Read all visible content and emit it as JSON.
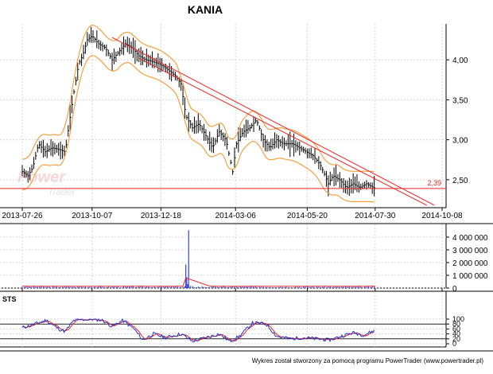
{
  "chart_data": [
    {
      "type": "line",
      "title": "KANIA",
      "price_axis": {
        "ylim": [
          2.15,
          4.45
        ],
        "ticks": [
          "4,00",
          "3,50",
          "3,00",
          "2,50"
        ],
        "tick_values": [
          4.0,
          3.5,
          3.0,
          2.5
        ]
      },
      "date_axis": {
        "ticks": [
          "2013-07-26",
          "2013-10-07",
          "2013-12-18",
          "2014-03-06",
          "2014-05-20",
          "2014-07-30",
          "2014-10-08"
        ]
      },
      "close_series": [
        [
          "2013-07-26",
          2.6
        ],
        [
          "2013-08-01",
          2.55
        ],
        [
          "2013-08-06",
          2.65
        ],
        [
          "2013-08-12",
          2.95
        ],
        [
          "2013-08-19",
          2.85
        ],
        [
          "2013-08-26",
          2.9
        ],
        [
          "2013-09-02",
          2.88
        ],
        [
          "2013-09-09",
          2.85
        ],
        [
          "2013-09-13",
          3.2
        ],
        [
          "2013-09-18",
          3.6
        ],
        [
          "2013-09-23",
          3.95
        ],
        [
          "2013-09-27",
          4.05
        ],
        [
          "2013-10-02",
          4.25
        ],
        [
          "2013-10-07",
          4.3
        ],
        [
          "2013-10-14",
          4.2
        ],
        [
          "2013-10-21",
          4.15
        ],
        [
          "2013-10-28",
          4.0
        ],
        [
          "2013-11-04",
          4.1
        ],
        [
          "2013-11-11",
          4.2
        ],
        [
          "2013-11-18",
          4.15
        ],
        [
          "2013-11-25",
          4.05
        ],
        [
          "2013-12-02",
          4.0
        ],
        [
          "2013-12-09",
          3.98
        ],
        [
          "2013-12-16",
          3.95
        ],
        [
          "2013-12-23",
          3.9
        ],
        [
          "2014-01-02",
          3.8
        ],
        [
          "2014-01-08",
          3.7
        ],
        [
          "2014-01-13",
          3.3
        ],
        [
          "2014-01-20",
          3.15
        ],
        [
          "2014-01-27",
          3.2
        ],
        [
          "2014-02-03",
          3.05
        ],
        [
          "2014-02-10",
          2.9
        ],
        [
          "2014-02-17",
          3.1
        ],
        [
          "2014-02-24",
          3.0
        ],
        [
          "2014-03-03",
          2.6
        ],
        [
          "2014-03-07",
          2.95
        ],
        [
          "2014-03-14",
          3.1
        ],
        [
          "2014-03-21",
          3.15
        ],
        [
          "2014-03-28",
          3.25
        ],
        [
          "2014-04-04",
          3.0
        ],
        [
          "2014-04-11",
          2.9
        ],
        [
          "2014-04-18",
          3.0
        ],
        [
          "2014-04-25",
          2.95
        ],
        [
          "2014-05-05",
          2.95
        ],
        [
          "2014-05-12",
          2.9
        ],
        [
          "2014-05-19",
          2.85
        ],
        [
          "2014-05-26",
          2.8
        ],
        [
          "2014-06-02",
          2.7
        ],
        [
          "2014-06-06",
          2.6
        ],
        [
          "2014-06-11",
          2.45
        ],
        [
          "2014-06-16",
          2.55
        ],
        [
          "2014-06-23",
          2.5
        ],
        [
          "2014-06-30",
          2.4
        ],
        [
          "2014-07-07",
          2.45
        ],
        [
          "2014-07-14",
          2.4
        ],
        [
          "2014-07-21",
          2.45
        ],
        [
          "2014-07-30",
          2.39
        ]
      ],
      "support_line": {
        "label": "2,39",
        "value": 2.39,
        "color": "#ee2222"
      },
      "trendlines": [
        {
          "from": [
            "2013-10-28",
            4.28
          ],
          "to": [
            "2014-09-30",
            2.18
          ]
        },
        {
          "from": [
            "2013-11-25",
            4.02
          ],
          "to": [
            "2014-09-22",
            2.18
          ]
        }
      ],
      "colors": {
        "price": "#000000",
        "envelope": "#f5a040",
        "trend": "#ee2222"
      }
    },
    {
      "type": "bar",
      "ylim": [
        0,
        5000000
      ],
      "ticks": [
        "4 000 000",
        "3 000 000",
        "2 000 000",
        "1 000 000",
        "0"
      ],
      "tick_values": [
        4000000,
        3000000,
        2000000,
        1000000,
        0
      ],
      "spikes": [
        [
          "2014-01-16",
          4550000
        ],
        [
          "2014-01-13",
          1850000
        ],
        [
          "2014-01-14",
          850000
        ],
        [
          "2014-01-15",
          300000
        ]
      ],
      "colors": {
        "volume": "#3344dd",
        "volume_avg": "#ee2222"
      }
    },
    {
      "type": "line",
      "title": "STS",
      "ylim": [
        0,
        100
      ],
      "ticks": [
        "100",
        "80",
        "60",
        "40",
        "20",
        "0"
      ],
      "tick_values": [
        100,
        80,
        60,
        40,
        20,
        0
      ],
      "series": [
        {
          "values": [
            [
              "2013-07-26",
              65
            ],
            [
              "2013-08-08",
              80
            ],
            [
              "2013-08-20",
              95
            ],
            [
              "2013-09-02",
              60
            ],
            [
              "2013-09-09",
              50
            ],
            [
              "2013-09-18",
              95
            ],
            [
              "2013-10-07",
              100
            ],
            [
              "2013-10-18",
              95
            ],
            [
              "2013-10-28",
              70
            ],
            [
              "2013-11-08",
              95
            ],
            [
              "2013-11-20",
              60
            ],
            [
              "2013-11-29",
              15
            ],
            [
              "2013-12-10",
              40
            ],
            [
              "2013-12-23",
              25
            ],
            [
              "2014-01-08",
              40
            ],
            [
              "2014-01-20",
              10
            ],
            [
              "2014-02-03",
              25
            ],
            [
              "2014-02-17",
              40
            ],
            [
              "2014-02-28",
              10
            ],
            [
              "2014-03-10",
              30
            ],
            [
              "2014-03-24",
              85
            ],
            [
              "2014-04-07",
              80
            ],
            [
              "2014-04-18",
              30
            ],
            [
              "2014-05-02",
              20
            ],
            [
              "2014-05-16",
              25
            ],
            [
              "2014-05-30",
              20
            ],
            [
              "2014-06-12",
              15
            ],
            [
              "2014-06-24",
              30
            ],
            [
              "2014-07-07",
              45
            ],
            [
              "2014-07-18",
              35
            ],
            [
              "2014-07-30",
              55
            ]
          ]
        }
      ],
      "colors": {
        "fast": "#2233cc",
        "slow": "#ee2222",
        "guides": "#222222"
      }
    }
  ],
  "watermark": {
    "word1": "Power",
    "word2": "Trader"
  },
  "footer": {
    "text": "Wykres został stworzony za pomocą programu PowerTrader (www.powertrader.pl)"
  }
}
